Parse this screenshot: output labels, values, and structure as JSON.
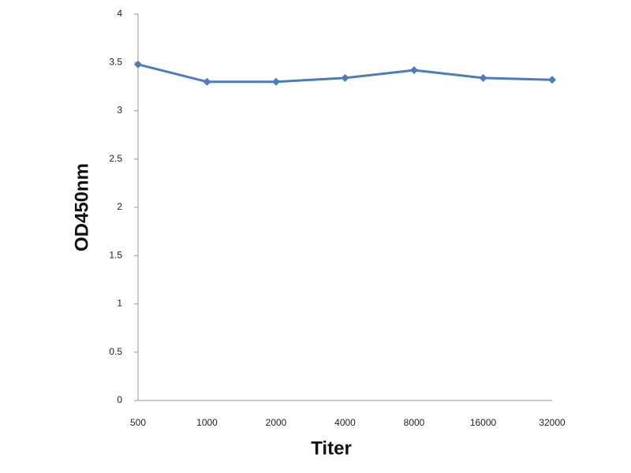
{
  "chart_data": {
    "type": "line",
    "x_label": "Titer",
    "y_label": "OD450nm",
    "categories": [
      "500",
      "1000",
      "2000",
      "4000",
      "8000",
      "16000",
      "32000"
    ],
    "series": [
      {
        "name": "OD450nm",
        "color": "#4a7ebb",
        "values": [
          3.48,
          3.3,
          3.3,
          3.34,
          3.42,
          3.34,
          3.32
        ]
      }
    ],
    "ylim": [
      0,
      4
    ],
    "yticks": [
      0,
      0.5,
      1,
      1.5,
      2,
      2.5,
      3,
      3.5,
      4
    ],
    "grid": false
  }
}
